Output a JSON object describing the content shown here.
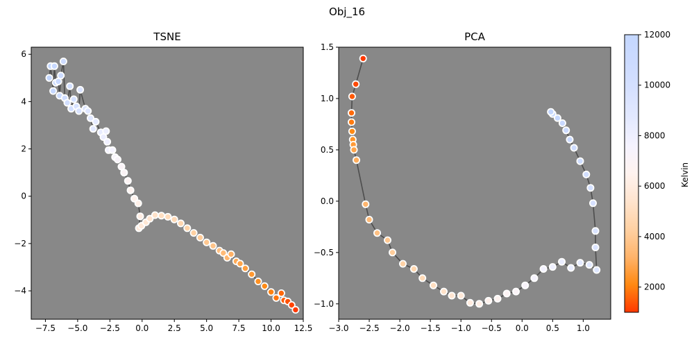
{
  "figure": {
    "title": "Obj_16"
  },
  "colors": {
    "plot_bg": "#888888",
    "trace_line": "#3a3a3a",
    "marker_edge": "#ffffff"
  },
  "colorbar": {
    "label": "Kelvin",
    "min": 1000,
    "max": 12000,
    "ticks": [
      2000,
      4000,
      6000,
      8000,
      10000,
      12000
    ],
    "tick_labels": [
      "2000",
      "4000",
      "6000",
      "8000",
      "10000",
      "12000"
    ],
    "stops": [
      "#ff3800",
      "#ff8912",
      "#ffb46b",
      "#ffd1a3",
      "#ffe4ce",
      "#fff3ef",
      "#f5f3ff",
      "#e3e9ff",
      "#d6e1ff",
      "#ccdbff",
      "#c4d7ff"
    ]
  },
  "chart_data": [
    {
      "type": "scatter",
      "title": "TSNE",
      "xlabel": "",
      "ylabel": "",
      "xlim": [
        -8.6,
        12.5
      ],
      "ylim": [
        -5.2,
        6.3
      ],
      "xticks": [
        -7.5,
        -5.0,
        -2.5,
        0.0,
        2.5,
        5.0,
        7.5,
        10.0,
        12.5
      ],
      "xtick_labels": [
        "−7.5",
        "−5.0",
        "−2.5",
        "0.0",
        "2.5",
        "5.0",
        "7.5",
        "10.0",
        "12.5"
      ],
      "yticks": [
        -4,
        -2,
        0,
        2,
        4,
        6
      ],
      "ytick_labels": [
        "−4",
        "−2",
        "0",
        "2",
        "4",
        "6"
      ],
      "points": [
        [
          -7.2,
          5.0
        ],
        [
          -7.1,
          5.5
        ],
        [
          -6.9,
          4.45
        ],
        [
          -6.8,
          5.5
        ],
        [
          -6.7,
          4.8
        ],
        [
          -6.5,
          4.85
        ],
        [
          -6.4,
          4.25
        ],
        [
          -6.3,
          5.1
        ],
        [
          -6.1,
          5.7
        ],
        [
          -6.0,
          4.15
        ],
        [
          -5.8,
          3.95
        ],
        [
          -5.6,
          4.65
        ],
        [
          -5.5,
          3.7
        ],
        [
          -5.3,
          4.1
        ],
        [
          -5.1,
          3.8
        ],
        [
          -4.9,
          3.6
        ],
        [
          -4.8,
          4.5
        ],
        [
          -4.4,
          3.7
        ],
        [
          -4.2,
          3.6
        ],
        [
          -4.0,
          3.3
        ],
        [
          -3.8,
          2.85
        ],
        [
          -3.6,
          3.15
        ],
        [
          -3.2,
          2.7
        ],
        [
          -3.0,
          2.5
        ],
        [
          -2.8,
          2.75
        ],
        [
          -2.7,
          2.3
        ],
        [
          -2.6,
          1.95
        ],
        [
          -2.3,
          1.95
        ],
        [
          -2.1,
          1.65
        ],
        [
          -1.9,
          1.55
        ],
        [
          -1.6,
          1.25
        ],
        [
          -1.4,
          1.0
        ],
        [
          -1.1,
          0.65
        ],
        [
          -0.9,
          0.25
        ],
        [
          -0.6,
          -0.1
        ],
        [
          -0.3,
          -0.3
        ],
        [
          -0.15,
          -0.85
        ],
        [
          -0.25,
          -1.35
        ],
        [
          -0.05,
          -1.25
        ],
        [
          0.3,
          -1.1
        ],
        [
          0.6,
          -0.95
        ],
        [
          1.0,
          -0.8
        ],
        [
          1.5,
          -0.82
        ],
        [
          2.0,
          -0.87
        ],
        [
          2.5,
          -0.98
        ],
        [
          3.0,
          -1.15
        ],
        [
          3.5,
          -1.35
        ],
        [
          4.0,
          -1.55
        ],
        [
          4.5,
          -1.75
        ],
        [
          5.0,
          -1.95
        ],
        [
          5.5,
          -2.1
        ],
        [
          6.0,
          -2.3
        ],
        [
          6.3,
          -2.4
        ],
        [
          6.6,
          -2.6
        ],
        [
          6.9,
          -2.45
        ],
        [
          7.3,
          -2.75
        ],
        [
          7.6,
          -2.85
        ],
        [
          8.0,
          -3.05
        ],
        [
          8.5,
          -3.3
        ],
        [
          9.0,
          -3.6
        ],
        [
          9.5,
          -3.8
        ],
        [
          10.0,
          -4.05
        ],
        [
          10.4,
          -4.3
        ],
        [
          10.8,
          -4.1
        ],
        [
          11.0,
          -4.4
        ],
        [
          11.3,
          -4.45
        ],
        [
          11.6,
          -4.6
        ],
        [
          11.9,
          -4.8
        ]
      ]
    },
    {
      "type": "scatter",
      "title": "PCA",
      "xlabel": "",
      "ylabel": "",
      "xlim": [
        -3.0,
        1.45
      ],
      "ylim": [
        -1.15,
        1.5
      ],
      "xticks": [
        -3.0,
        -2.5,
        -2.0,
        -1.5,
        -1.0,
        -0.5,
        0.0,
        0.5,
        1.0
      ],
      "xtick_labels": [
        "−3.0",
        "−2.5",
        "−2.0",
        "−1.5",
        "−1.0",
        "−0.5",
        "0.0",
        "0.5",
        "1.0"
      ],
      "yticks": [
        -1.0,
        -0.5,
        0.0,
        0.5,
        1.0,
        1.5
      ],
      "ytick_labels": [
        "−1.0",
        "−0.5",
        "0.0",
        "0.5",
        "1.0",
        "1.5"
      ],
      "points": [
        [
          -2.6,
          1.39
        ],
        [
          -2.72,
          1.14
        ],
        [
          -2.78,
          1.02
        ],
        [
          -2.79,
          0.86
        ],
        [
          -2.79,
          0.77
        ],
        [
          -2.78,
          0.68
        ],
        [
          -2.77,
          0.6
        ],
        [
          -2.76,
          0.55
        ],
        [
          -2.75,
          0.5
        ],
        [
          -2.71,
          0.4
        ],
        [
          -2.56,
          -0.03
        ],
        [
          -2.5,
          -0.18
        ],
        [
          -2.37,
          -0.31
        ],
        [
          -2.2,
          -0.38
        ],
        [
          -2.12,
          -0.5
        ],
        [
          -1.95,
          -0.61
        ],
        [
          -1.77,
          -0.66
        ],
        [
          -1.63,
          -0.75
        ],
        [
          -1.45,
          -0.82
        ],
        [
          -1.28,
          -0.88
        ],
        [
          -1.15,
          -0.92
        ],
        [
          -1.0,
          -0.92
        ],
        [
          -0.85,
          -0.99
        ],
        [
          -0.7,
          -1.0
        ],
        [
          -0.55,
          -0.97
        ],
        [
          -0.4,
          -0.95
        ],
        [
          -0.25,
          -0.9
        ],
        [
          -0.1,
          -0.88
        ],
        [
          0.05,
          -0.82
        ],
        [
          0.2,
          -0.75
        ],
        [
          0.35,
          -0.66
        ],
        [
          0.5,
          -0.64
        ],
        [
          0.65,
          -0.59
        ],
        [
          0.8,
          -0.65
        ],
        [
          0.95,
          -0.6
        ],
        [
          1.1,
          -0.62
        ],
        [
          1.22,
          -0.67
        ],
        [
          1.2,
          -0.45
        ],
        [
          1.2,
          -0.29
        ],
        [
          1.16,
          -0.02
        ],
        [
          1.12,
          0.13
        ],
        [
          1.05,
          0.26
        ],
        [
          0.95,
          0.39
        ],
        [
          0.85,
          0.52
        ],
        [
          0.78,
          0.6
        ],
        [
          0.72,
          0.69
        ],
        [
          0.66,
          0.76
        ],
        [
          0.58,
          0.81
        ],
        [
          0.5,
          0.85
        ],
        [
          0.47,
          0.87
        ]
      ]
    }
  ]
}
